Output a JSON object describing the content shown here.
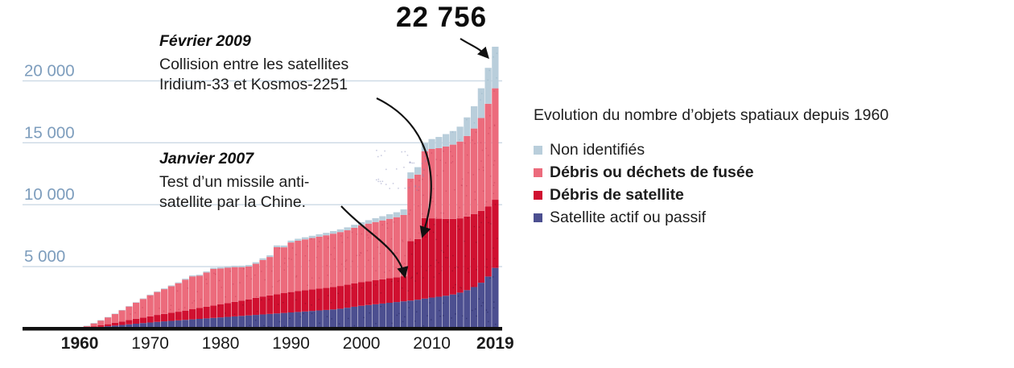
{
  "chart_data": {
    "type": "bar",
    "stacked": true,
    "title": "Evolution du nombre d’objets spatiaux depuis 1960",
    "grid": true,
    "ylim": [
      0,
      24000
    ],
    "y_tick_labels": [
      "20 000",
      "15 000",
      "10 000",
      "5 000"
    ],
    "y_tick_values": [
      20000,
      15000,
      10000,
      5000
    ],
    "x_ticks": [
      {
        "year": 1960,
        "label": "1960",
        "bold": true
      },
      {
        "year": 1970,
        "label": "1970",
        "bold": false
      },
      {
        "year": 1980,
        "label": "1980",
        "bold": false
      },
      {
        "year": 1990,
        "label": "1990",
        "bold": false
      },
      {
        "year": 2000,
        "label": "2000",
        "bold": false
      },
      {
        "year": 2010,
        "label": "2010",
        "bold": false
      },
      {
        "year": 2019,
        "label": "2019",
        "bold": true
      }
    ],
    "x": [
      1960,
      1961,
      1962,
      1963,
      1964,
      1965,
      1966,
      1967,
      1968,
      1969,
      1970,
      1971,
      1972,
      1973,
      1974,
      1975,
      1976,
      1977,
      1978,
      1979,
      1980,
      1981,
      1982,
      1983,
      1984,
      1985,
      1986,
      1987,
      1988,
      1989,
      1990,
      1991,
      1992,
      1993,
      1994,
      1995,
      1996,
      1997,
      1998,
      1999,
      2000,
      2001,
      2002,
      2003,
      2004,
      2005,
      2006,
      2007,
      2008,
      2009,
      2010,
      2011,
      2012,
      2013,
      2014,
      2015,
      2016,
      2017,
      2018,
      2019
    ],
    "series": [
      {
        "name": "Satellite actif ou passif",
        "color": "#4c4f90",
        "values": [
          30,
          60,
          100,
          140,
          190,
          240,
          290,
          340,
          390,
          440,
          490,
          540,
          580,
          620,
          660,
          700,
          740,
          780,
          820,
          860,
          900,
          940,
          980,
          1020,
          1060,
          1100,
          1140,
          1180,
          1220,
          1260,
          1300,
          1340,
          1380,
          1420,
          1460,
          1500,
          1540,
          1600,
          1680,
          1760,
          1840,
          1900,
          1960,
          2020,
          2080,
          2140,
          2200,
          2260,
          2330,
          2420,
          2500,
          2570,
          2650,
          2750,
          2900,
          3100,
          3350,
          3700,
          4200,
          4900
        ]
      },
      {
        "name": "Débris de satellite",
        "color": "#d01030",
        "values": [
          0,
          40,
          80,
          120,
          160,
          220,
          280,
          340,
          400,
          450,
          500,
          560,
          600,
          650,
          700,
          750,
          820,
          880,
          950,
          1000,
          1050,
          1120,
          1180,
          1240,
          1300,
          1380,
          1450,
          1500,
          1550,
          1600,
          1650,
          1700,
          1720,
          1740,
          1760,
          1780,
          1820,
          1840,
          1860,
          1880,
          1900,
          1920,
          1940,
          1960,
          1980,
          2000,
          2020,
          4800,
          4900,
          6500,
          6400,
          6300,
          6200,
          6100,
          6000,
          5950,
          5900,
          5800,
          5650,
          5500
        ]
      },
      {
        "name": "Débris ou déchets de fusée",
        "color": "#ec6b7c",
        "values": [
          20,
          120,
          250,
          400,
          560,
          720,
          900,
          1100,
          1300,
          1500,
          1700,
          1850,
          2000,
          2150,
          2300,
          2500,
          2650,
          2600,
          2750,
          2950,
          2900,
          2850,
          2800,
          2700,
          2650,
          2750,
          2950,
          3100,
          3800,
          3700,
          4000,
          4050,
          4100,
          4150,
          4200,
          4250,
          4300,
          4350,
          4400,
          4500,
          4600,
          4650,
          4700,
          4750,
          4800,
          4850,
          4950,
          5050,
          5200,
          5400,
          5600,
          5700,
          5850,
          6000,
          6200,
          6500,
          6900,
          7500,
          8300,
          9000
        ]
      },
      {
        "name": "Non identifiés",
        "color": "#b9cedb",
        "values": [
          0,
          5,
          10,
          15,
          20,
          25,
          30,
          35,
          40,
          45,
          50,
          55,
          60,
          65,
          70,
          75,
          80,
          85,
          90,
          95,
          100,
          105,
          110,
          115,
          120,
          125,
          130,
          135,
          140,
          145,
          150,
          160,
          170,
          180,
          190,
          200,
          210,
          220,
          230,
          240,
          250,
          280,
          310,
          340,
          370,
          400,
          450,
          500,
          600,
          650,
          800,
          900,
          1000,
          1100,
          1200,
          1500,
          1800,
          2400,
          2900,
          3356
        ]
      }
    ],
    "legend": {
      "position": "right",
      "items": [
        {
          "label": "Non identifiés",
          "color": "#b9cedb",
          "bold": false
        },
        {
          "label": "Débris ou déchets de fusée",
          "color": "#ec6b7c",
          "bold": true
        },
        {
          "label": "Débris de satellite",
          "color": "#d01030",
          "bold": true
        },
        {
          "label": "Satellite actif ou passif",
          "color": "#4c4f90",
          "bold": false
        }
      ]
    },
    "peak": {
      "label": "22 756",
      "value": 22756,
      "year": 2019
    },
    "annotations": {
      "collision": {
        "date": "Février 2009",
        "line1": "Collision entre les satellites",
        "line2": "Iridium-33 et Kosmos-2251"
      },
      "missile": {
        "date": "Janvier 2007",
        "line1": "Test d’un missile anti-",
        "line2": "satellite par la Chine."
      }
    },
    "colors": {
      "axis": "#111111",
      "gridline": "#ccd9e5",
      "y_tick_text": "#7d9dbd",
      "x_tick_text": "#1a1a1a",
      "annotation_arrow": "#111111"
    }
  }
}
